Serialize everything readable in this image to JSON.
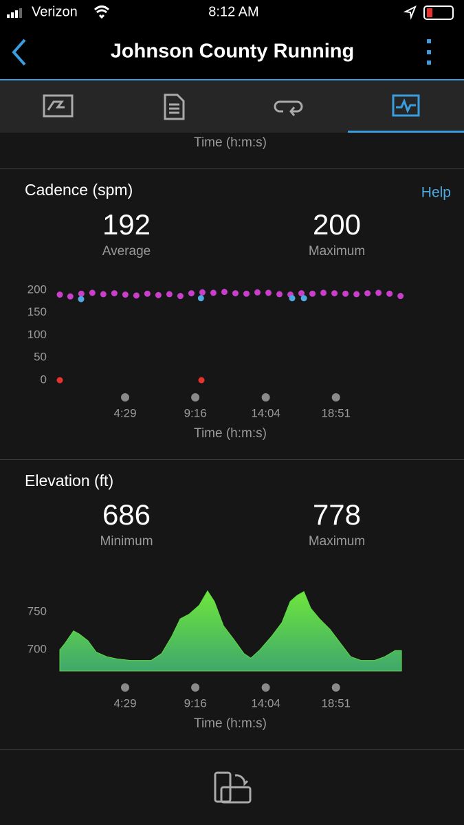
{
  "status_bar": {
    "carrier": "Verizon",
    "time": "8:12 AM"
  },
  "header": {
    "title": "Johnson County Running"
  },
  "previous_chart": {
    "x_label": "Time (h:m:s)"
  },
  "cadence": {
    "title": "Cadence (spm)",
    "help": "Help",
    "stats": [
      {
        "value": 192,
        "label": "Average"
      },
      {
        "value": 200,
        "label": "Maximum"
      }
    ],
    "chart_data": {
      "type": "scatter",
      "x_label": "Time (h:m:s)",
      "xlim": [
        0,
        1401
      ],
      "xticks": [
        {
          "value": 269,
          "label": "4:29"
        },
        {
          "value": 556,
          "label": "9:16"
        },
        {
          "value": 844,
          "label": "14:04"
        },
        {
          "value": 1131,
          "label": "18:51"
        }
      ],
      "ylim": [
        0,
        200
      ],
      "yticks": [
        0,
        50,
        100,
        150,
        200
      ],
      "series": [
        {
          "color": "#c93fc9",
          "x": [
            2,
            45,
            90,
            135,
            180,
            225,
            270,
            315,
            360,
            405,
            450,
            495,
            540,
            585,
            630,
            675,
            720,
            765,
            810,
            855,
            900,
            945,
            990,
            1035,
            1080,
            1125,
            1170,
            1215,
            1260,
            1305,
            1350,
            1395
          ],
          "values": [
            190,
            186,
            192,
            194,
            191,
            193,
            190,
            188,
            192,
            189,
            191,
            187,
            193,
            195,
            194,
            196,
            193,
            192,
            195,
            194,
            191,
            190,
            193,
            192,
            194,
            193,
            192,
            191,
            193,
            194,
            192,
            187
          ]
        },
        {
          "color": "#4fa8e0",
          "x": [
            89,
            579,
            952,
            1000
          ],
          "values": [
            180,
            182,
            182,
            182
          ]
        },
        {
          "color": "#e8322c",
          "x": [
            2,
            581
          ],
          "values": [
            0,
            0
          ]
        }
      ]
    }
  },
  "elevation": {
    "title": "Elevation (ft)",
    "stats": [
      {
        "value": 686,
        "label": "Minimum"
      },
      {
        "value": 778,
        "label": "Maximum"
      }
    ],
    "chart_data": {
      "type": "area",
      "x_label": "Time (h:m:s)",
      "xlim": [
        0,
        1401
      ],
      "xticks": [
        {
          "value": 269,
          "label": "4:29"
        },
        {
          "value": 556,
          "label": "9:16"
        },
        {
          "value": 844,
          "label": "14:04"
        },
        {
          "value": 1131,
          "label": "18:51"
        }
      ],
      "ylim": [
        672,
        780
      ],
      "yticks": [
        700,
        750
      ],
      "color": "#5fd845",
      "x": [
        2,
        24,
        58,
        81,
        117,
        151,
        193,
        235,
        291,
        376,
        418,
        460,
        494,
        530,
        572,
        606,
        634,
        671,
        713,
        755,
        783,
        820,
        868,
        910,
        944,
        972,
        1000,
        1028,
        1064,
        1107,
        1149,
        1191,
        1233,
        1289,
        1331,
        1373,
        1399
      ],
      "values": [
        700,
        709,
        725,
        721,
        712,
        697,
        691,
        688,
        686,
        686,
        695,
        718,
        741,
        747,
        759,
        778,
        764,
        732,
        714,
        695,
        689,
        700,
        718,
        736,
        764,
        772,
        777,
        755,
        741,
        727,
        709,
        691,
        686,
        686,
        691,
        699,
        699
      ]
    }
  }
}
